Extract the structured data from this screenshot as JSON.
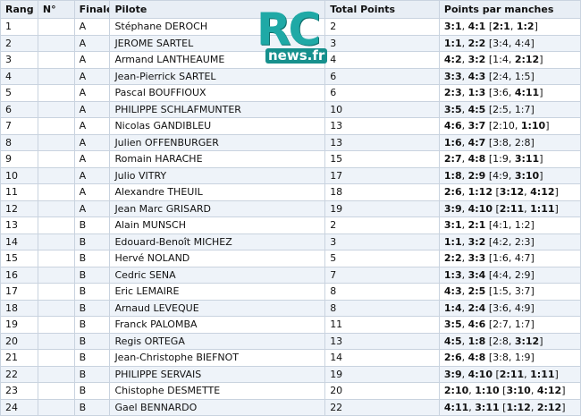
{
  "headers": {
    "rang": "Rang",
    "num": "N°",
    "finale": "Finale",
    "pilote": "Pilote",
    "total": "Total Points",
    "points": "Points par manches"
  },
  "logo": {
    "rc": "RC",
    "news": "news.fr"
  },
  "rows": [
    {
      "rang": "1",
      "num": "",
      "finale": "A",
      "pilote": "Stéphane DEROCH",
      "total": "2",
      "points": [
        [
          "3:1",
          1
        ],
        [
          ", ",
          0
        ],
        [
          "4:1",
          1
        ],
        [
          " [",
          0
        ],
        [
          "2:1",
          1
        ],
        [
          ", ",
          0
        ],
        [
          "1:2",
          1
        ],
        [
          "]",
          0
        ]
      ]
    },
    {
      "rang": "2",
      "num": "",
      "finale": "A",
      "pilote": "JEROME SARTEL",
      "total": "3",
      "points": [
        [
          "1:1",
          1
        ],
        [
          ", ",
          0
        ],
        [
          "2:2",
          1
        ],
        [
          " [3:4, 4:4]",
          0
        ]
      ]
    },
    {
      "rang": "3",
      "num": "",
      "finale": "A",
      "pilote": "Armand LANTHEAUME",
      "total": "4",
      "points": [
        [
          "4:2",
          1
        ],
        [
          ", ",
          0
        ],
        [
          "3:2",
          1
        ],
        [
          " [1:4, ",
          0
        ],
        [
          "2:12",
          1
        ],
        [
          "]",
          0
        ]
      ]
    },
    {
      "rang": "4",
      "num": "",
      "finale": "A",
      "pilote": "Jean-Pierrick SARTEL",
      "total": "6",
      "points": [
        [
          "3:3",
          1
        ],
        [
          ", ",
          0
        ],
        [
          "4:3",
          1
        ],
        [
          " [2:4, 1:5]",
          0
        ]
      ]
    },
    {
      "rang": "5",
      "num": "",
      "finale": "A",
      "pilote": "Pascal BOUFFIOUX",
      "total": "6",
      "points": [
        [
          "2:3",
          1
        ],
        [
          ", ",
          0
        ],
        [
          "1:3",
          1
        ],
        [
          " [3:6, ",
          0
        ],
        [
          "4:11",
          1
        ],
        [
          "]",
          0
        ]
      ]
    },
    {
      "rang": "6",
      "num": "",
      "finale": "A",
      "pilote": "PHILIPPE SCHLAFMUNTER",
      "total": "10",
      "points": [
        [
          "3:5",
          1
        ],
        [
          ", ",
          0
        ],
        [
          "4:5",
          1
        ],
        [
          " [2:5, 1:7]",
          0
        ]
      ]
    },
    {
      "rang": "7",
      "num": "",
      "finale": "A",
      "pilote": "Nicolas GANDIBLEU",
      "total": "13",
      "points": [
        [
          "4:6",
          1
        ],
        [
          ", ",
          0
        ],
        [
          "3:7",
          1
        ],
        [
          " [2:10, ",
          0
        ],
        [
          "1:10",
          1
        ],
        [
          "]",
          0
        ]
      ]
    },
    {
      "rang": "8",
      "num": "",
      "finale": "A",
      "pilote": "Julien OFFENBURGER",
      "total": "13",
      "points": [
        [
          "1:6",
          1
        ],
        [
          ", ",
          0
        ],
        [
          "4:7",
          1
        ],
        [
          " [3:8, 2:8]",
          0
        ]
      ]
    },
    {
      "rang": "9",
      "num": "",
      "finale": "A",
      "pilote": "Romain HARACHE",
      "total": "15",
      "points": [
        [
          "2:7",
          1
        ],
        [
          ", ",
          0
        ],
        [
          "4:8",
          1
        ],
        [
          " [1:9, ",
          0
        ],
        [
          "3:11",
          1
        ],
        [
          "]",
          0
        ]
      ]
    },
    {
      "rang": "10",
      "num": "",
      "finale": "A",
      "pilote": "Julio VITRY",
      "total": "17",
      "points": [
        [
          "1:8",
          1
        ],
        [
          ", ",
          0
        ],
        [
          "2:9",
          1
        ],
        [
          " [4:9, ",
          0
        ],
        [
          "3:10",
          1
        ],
        [
          "]",
          0
        ]
      ]
    },
    {
      "rang": "11",
      "num": "",
      "finale": "A",
      "pilote": "Alexandre THEUIL",
      "total": "18",
      "points": [
        [
          "2:6",
          1
        ],
        [
          ", ",
          0
        ],
        [
          "1:12",
          1
        ],
        [
          " [",
          0
        ],
        [
          "3:12",
          1
        ],
        [
          ", ",
          0
        ],
        [
          "4:12",
          1
        ],
        [
          "]",
          0
        ]
      ]
    },
    {
      "rang": "12",
      "num": "",
      "finale": "A",
      "pilote": "Jean Marc GRISARD",
      "total": "19",
      "points": [
        [
          "3:9",
          1
        ],
        [
          ", ",
          0
        ],
        [
          "4:10",
          1
        ],
        [
          " [",
          0
        ],
        [
          "2:11",
          1
        ],
        [
          ", ",
          0
        ],
        [
          "1:11",
          1
        ],
        [
          "]",
          0
        ]
      ]
    },
    {
      "rang": "13",
      "num": "",
      "finale": "B",
      "pilote": "Alain MUNSCH",
      "total": "2",
      "points": [
        [
          "3:1",
          1
        ],
        [
          ", ",
          0
        ],
        [
          "2:1",
          1
        ],
        [
          " [4:1, 1:2]",
          0
        ]
      ]
    },
    {
      "rang": "14",
      "num": "",
      "finale": "B",
      "pilote": "Edouard-Benoît MICHEZ",
      "total": "3",
      "points": [
        [
          "1:1",
          1
        ],
        [
          ", ",
          0
        ],
        [
          "3:2",
          1
        ],
        [
          " [4:2, 2:3]",
          0
        ]
      ]
    },
    {
      "rang": "15",
      "num": "",
      "finale": "B",
      "pilote": "Hervé NOLAND",
      "total": "5",
      "points": [
        [
          "2:2",
          1
        ],
        [
          ", ",
          0
        ],
        [
          "3:3",
          1
        ],
        [
          " [1:6, 4:7]",
          0
        ]
      ]
    },
    {
      "rang": "16",
      "num": "",
      "finale": "B",
      "pilote": "Cedric SENA",
      "total": "7",
      "points": [
        [
          "1:3",
          1
        ],
        [
          ", ",
          0
        ],
        [
          "3:4",
          1
        ],
        [
          " [4:4, 2:9]",
          0
        ]
      ]
    },
    {
      "rang": "17",
      "num": "",
      "finale": "B",
      "pilote": "Eric LEMAIRE",
      "total": "8",
      "points": [
        [
          "4:3",
          1
        ],
        [
          ", ",
          0
        ],
        [
          "2:5",
          1
        ],
        [
          " [1:5, 3:7]",
          0
        ]
      ]
    },
    {
      "rang": "18",
      "num": "",
      "finale": "B",
      "pilote": "Arnaud LEVEQUE",
      "total": "8",
      "points": [
        [
          "1:4",
          1
        ],
        [
          ", ",
          0
        ],
        [
          "2:4",
          1
        ],
        [
          " [3:6, 4:9]",
          0
        ]
      ]
    },
    {
      "rang": "19",
      "num": "",
      "finale": "B",
      "pilote": "Franck PALOMBA",
      "total": "11",
      "points": [
        [
          "3:5",
          1
        ],
        [
          ", ",
          0
        ],
        [
          "4:6",
          1
        ],
        [
          " [2:7, 1:7]",
          0
        ]
      ]
    },
    {
      "rang": "20",
      "num": "",
      "finale": "B",
      "pilote": "Regis ORTEGA",
      "total": "13",
      "points": [
        [
          "4:5",
          1
        ],
        [
          ", ",
          0
        ],
        [
          "1:8",
          1
        ],
        [
          " [2:8, ",
          0
        ],
        [
          "3:12",
          1
        ],
        [
          "]",
          0
        ]
      ]
    },
    {
      "rang": "21",
      "num": "",
      "finale": "B",
      "pilote": "Jean-Christophe BIEFNOT",
      "total": "14",
      "points": [
        [
          "2:6",
          1
        ],
        [
          ", ",
          0
        ],
        [
          "4:8",
          1
        ],
        [
          " [3:8, 1:9]",
          0
        ]
      ]
    },
    {
      "rang": "22",
      "num": "",
      "finale": "B",
      "pilote": "PHILIPPE SERVAIS",
      "total": "19",
      "points": [
        [
          "3:9",
          1
        ],
        [
          ", ",
          0
        ],
        [
          "4:10",
          1
        ],
        [
          " [",
          0
        ],
        [
          "2:11",
          1
        ],
        [
          ", ",
          0
        ],
        [
          "1:11",
          1
        ],
        [
          "]",
          0
        ]
      ]
    },
    {
      "rang": "23",
      "num": "",
      "finale": "B",
      "pilote": "Chistophe DESMETTE",
      "total": "20",
      "points": [
        [
          "2:10",
          1
        ],
        [
          ", ",
          0
        ],
        [
          "1:10",
          1
        ],
        [
          " [",
          0
        ],
        [
          "3:10",
          1
        ],
        [
          ", ",
          0
        ],
        [
          "4:12",
          1
        ],
        [
          "]",
          0
        ]
      ]
    },
    {
      "rang": "24",
      "num": "",
      "finale": "B",
      "pilote": "Gael BENNARDO",
      "total": "22",
      "points": [
        [
          "4:11",
          1
        ],
        [
          ", ",
          0
        ],
        [
          "3:11",
          1
        ],
        [
          " [",
          0
        ],
        [
          "1:12",
          1
        ],
        [
          ", ",
          0
        ],
        [
          "2:12",
          1
        ],
        [
          "]",
          0
        ]
      ]
    }
  ]
}
